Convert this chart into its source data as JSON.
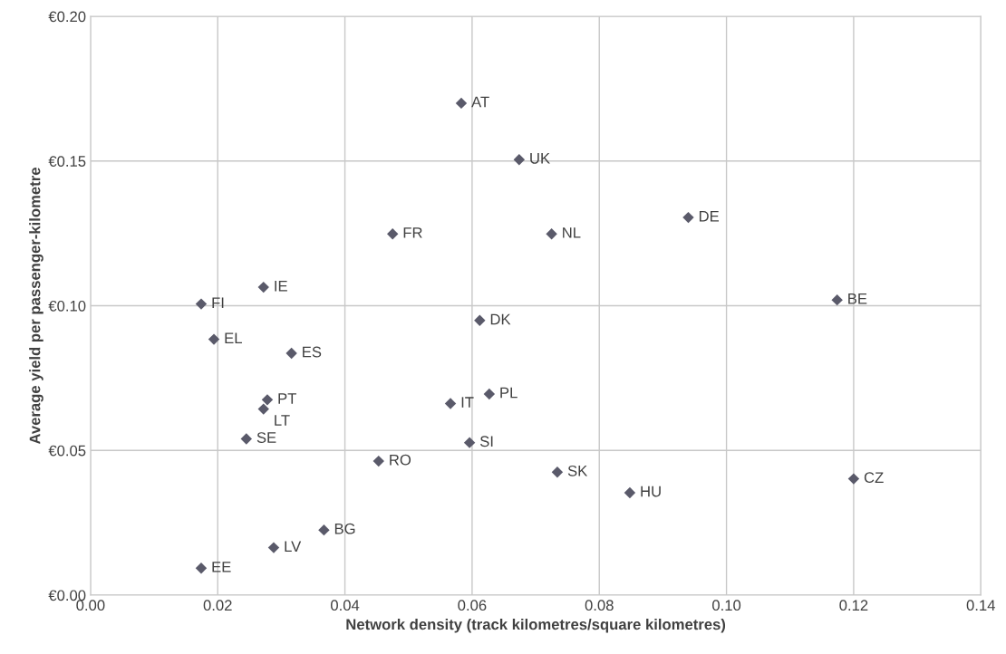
{
  "chart_data": {
    "type": "scatter",
    "xlabel": "Network density (track kilometres/square kilometres)",
    "ylabel": "Average yield per passenger-kilometre",
    "x": [
      0.0583,
      0.0674,
      0.094,
      0.0475,
      0.0725,
      0.0272,
      0.0174,
      0.1174,
      0.0612,
      0.0194,
      0.0316,
      0.0278,
      0.0272,
      0.0566,
      0.0627,
      0.0245,
      0.0596,
      0.0453,
      0.0734,
      0.0848,
      0.12,
      0.0367,
      0.0288,
      0.0174
    ],
    "values": [
      0.17,
      0.1505,
      0.1305,
      0.1248,
      0.1248,
      0.1064,
      0.1006,
      0.102,
      0.0949,
      0.0884,
      0.0836,
      0.0675,
      0.0643,
      0.0662,
      0.0695,
      0.054,
      0.0527,
      0.0463,
      0.0425,
      0.0354,
      0.0402,
      0.0225,
      0.0164,
      0.0093
    ],
    "annotations": [
      {
        "text": "AT",
        "x": 0.0583,
        "y": 0.17
      },
      {
        "text": "UK",
        "x": 0.0674,
        "y": 0.1505
      },
      {
        "text": "DE",
        "x": 0.094,
        "y": 0.1305
      },
      {
        "text": "FR",
        "x": 0.0475,
        "y": 0.1248
      },
      {
        "text": "NL",
        "x": 0.0725,
        "y": 0.1248
      },
      {
        "text": "IE",
        "x": 0.0272,
        "y": 0.1064
      },
      {
        "text": "FI",
        "x": 0.0174,
        "y": 0.1006
      },
      {
        "text": "BE",
        "x": 0.1174,
        "y": 0.102
      },
      {
        "text": "DK",
        "x": 0.0612,
        "y": 0.0949
      },
      {
        "text": "EL",
        "x": 0.0194,
        "y": 0.0884
      },
      {
        "text": "ES",
        "x": 0.0316,
        "y": 0.0836
      },
      {
        "text": "PT",
        "x": 0.0278,
        "y": 0.0675
      },
      {
        "text": "LT",
        "x": 0.0272,
        "y": 0.0643
      },
      {
        "text": "IT",
        "x": 0.0566,
        "y": 0.0662
      },
      {
        "text": "PL",
        "x": 0.0627,
        "y": 0.0695
      },
      {
        "text": "SE",
        "x": 0.0245,
        "y": 0.054
      },
      {
        "text": "SI",
        "x": 0.0596,
        "y": 0.0527
      },
      {
        "text": "RO",
        "x": 0.0453,
        "y": 0.0463
      },
      {
        "text": "SK",
        "x": 0.0734,
        "y": 0.0425
      },
      {
        "text": "HU",
        "x": 0.0848,
        "y": 0.0354
      },
      {
        "text": "CZ",
        "x": 0.12,
        "y": 0.0402
      },
      {
        "text": "BG",
        "x": 0.0367,
        "y": 0.0225
      },
      {
        "text": "LV",
        "x": 0.0288,
        "y": 0.0164
      },
      {
        "text": "EE",
        "x": 0.0174,
        "y": 0.0093
      }
    ],
    "color": "#5a5a6a",
    "marker": "diamond",
    "grid": true,
    "xlim": [
      0,
      0.14
    ],
    "xticks": [
      {
        "value": 0,
        "label": "0.00"
      },
      {
        "value": 0.02,
        "label": "0.02"
      },
      {
        "value": 0.04,
        "label": "0.04"
      },
      {
        "value": 0.06,
        "label": "0.06"
      },
      {
        "value": 0.08,
        "label": "0.08"
      },
      {
        "value": 0.1,
        "label": "0.10"
      },
      {
        "value": 0.12,
        "label": "0.12"
      },
      {
        "value": 0.14,
        "label": "0.14"
      }
    ],
    "ylim": [
      0,
      0.2
    ],
    "yticks": [
      {
        "value": 0,
        "label": "€0.00"
      },
      {
        "value": 0.05,
        "label": "€0.05"
      },
      {
        "value": 0.1,
        "label": "€0.10"
      },
      {
        "value": 0.15,
        "label": "€0.15"
      },
      {
        "value": 0.2,
        "label": "€0.20"
      }
    ]
  }
}
